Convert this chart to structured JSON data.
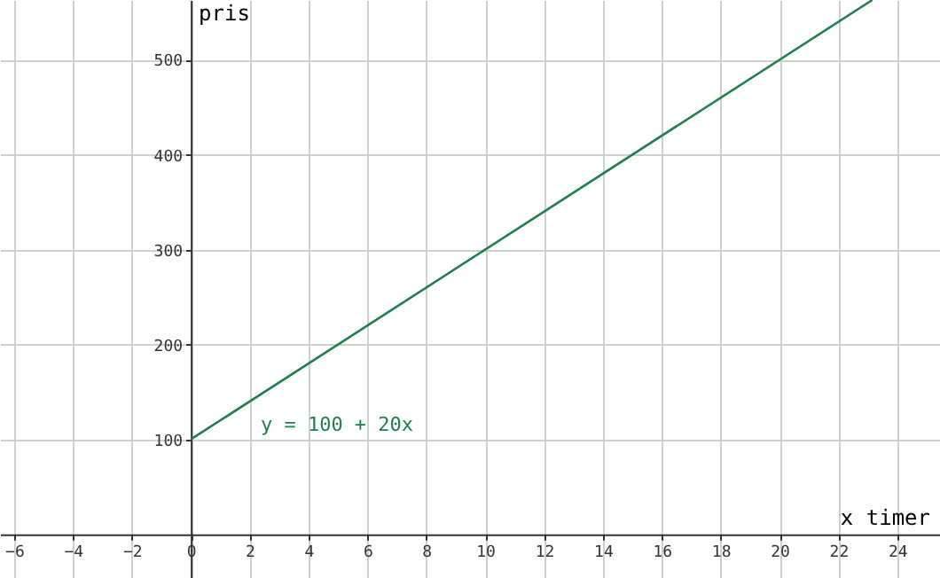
{
  "chart_data": {
    "type": "line",
    "xlabel": "x timer",
    "ylabel": "pris",
    "series": [
      {
        "color": "#1f7f4c",
        "x": [
          0,
          23.15
        ],
        "values": [
          100,
          563
        ]
      }
    ],
    "xlim": [
      -6.48,
      25.45
    ],
    "ylim": [
      -46,
      563
    ],
    "xticks": [
      -6,
      -4,
      -2,
      0,
      2,
      4,
      6,
      8,
      10,
      12,
      14,
      16,
      18,
      20,
      22,
      24
    ],
    "yticks": [
      100,
      200,
      300,
      400,
      500
    ],
    "grid": true,
    "annotations": [
      "y = 100 + 20x"
    ]
  }
}
